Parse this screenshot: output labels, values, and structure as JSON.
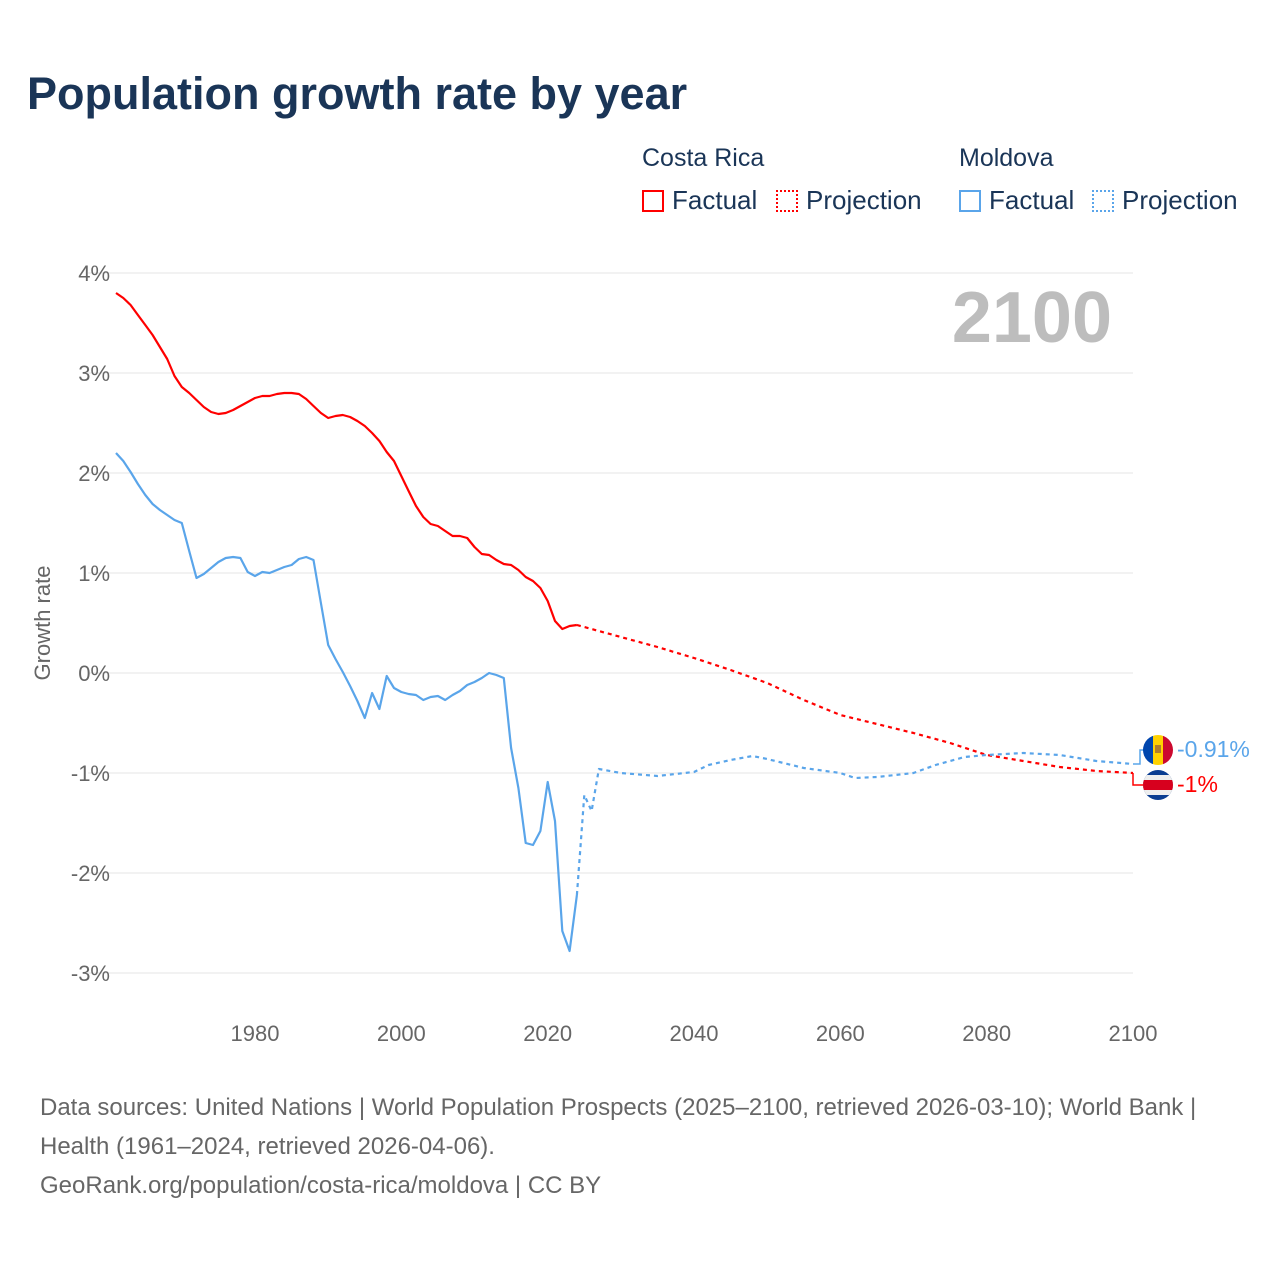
{
  "title": "Population growth rate by year",
  "legend": {
    "groups": [
      {
        "country": "Costa Rica",
        "factual_label": "Factual",
        "projection_label": "Projection",
        "color": "#ff0000"
      },
      {
        "country": "Moldova",
        "factual_label": "Factual",
        "projection_label": "Projection",
        "color": "#5aa5ea"
      }
    ]
  },
  "year_display": "2100",
  "end_labels": {
    "moldova": "-0.91%",
    "costa_rica": "-1%"
  },
  "footer": {
    "sources": "Data sources: United Nations | World Population Prospects (2025–2100, retrieved 2026-03-10); World Bank | Health (1961–2024, retrieved 2026-04-06).",
    "credit": "GeoRank.org/population/costa-rica/moldova | CC BY"
  },
  "chart_data": {
    "type": "line",
    "title": "Population growth rate by year",
    "xlabel": "",
    "ylabel": "Growth rate",
    "xlim": [
      1961,
      2100
    ],
    "ylim": [
      -3,
      4
    ],
    "xticks": [
      "1980",
      "2000",
      "2020",
      "2040",
      "2060",
      "2080",
      "2100"
    ],
    "xtick_values": [
      1980,
      2000,
      2020,
      2040,
      2060,
      2080,
      2100
    ],
    "yticks": [
      "4%",
      "3%",
      "2%",
      "1%",
      "0%",
      "-1%",
      "-2%",
      "-3%"
    ],
    "ytick_values": [
      4,
      3,
      2,
      1,
      0,
      -1,
      -2,
      -3
    ],
    "grid": true,
    "legend_position": "top-right",
    "series": [
      {
        "name": "Costa Rica Factual",
        "color": "#ff0000",
        "style": "solid",
        "x": [
          1961,
          1962,
          1963,
          1964,
          1965,
          1966,
          1967,
          1968,
          1969,
          1970,
          1971,
          1972,
          1973,
          1974,
          1975,
          1976,
          1977,
          1978,
          1979,
          1980,
          1981,
          1982,
          1983,
          1984,
          1985,
          1986,
          1987,
          1988,
          1989,
          1990,
          1991,
          1992,
          1993,
          1994,
          1995,
          1996,
          1997,
          1998,
          1999,
          2000,
          2001,
          2002,
          2003,
          2004,
          2005,
          2006,
          2007,
          2008,
          2009,
          2010,
          2011,
          2012,
          2013,
          2014,
          2015,
          2016,
          2017,
          2018,
          2019,
          2020,
          2021,
          2022,
          2023,
          2024
        ],
        "y": [
          3.8,
          3.75,
          3.68,
          3.58,
          3.48,
          3.38,
          3.26,
          3.14,
          2.97,
          2.86,
          2.8,
          2.73,
          2.66,
          2.61,
          2.59,
          2.6,
          2.63,
          2.67,
          2.71,
          2.75,
          2.77,
          2.77,
          2.79,
          2.8,
          2.8,
          2.79,
          2.74,
          2.67,
          2.6,
          2.55,
          2.57,
          2.58,
          2.56,
          2.52,
          2.47,
          2.4,
          2.32,
          2.21,
          2.12,
          1.97,
          1.82,
          1.67,
          1.56,
          1.49,
          1.47,
          1.42,
          1.37,
          1.37,
          1.35,
          1.26,
          1.19,
          1.18,
          1.13,
          1.09,
          1.08,
          1.03,
          0.96,
          0.92,
          0.85,
          0.72,
          0.52,
          0.44,
          0.47,
          0.48
        ]
      },
      {
        "name": "Costa Rica Projection",
        "color": "#ff0000",
        "style": "dotted",
        "x": [
          2024,
          2030,
          2035,
          2040,
          2045,
          2050,
          2055,
          2060,
          2065,
          2070,
          2075,
          2080,
          2085,
          2090,
          2095,
          2100
        ],
        "y": [
          0.48,
          0.36,
          0.26,
          0.15,
          0.03,
          -0.1,
          -0.27,
          -0.42,
          -0.51,
          -0.6,
          -0.7,
          -0.82,
          -0.88,
          -0.94,
          -0.98,
          -1.0
        ]
      },
      {
        "name": "Moldova Factual",
        "color": "#5aa5ea",
        "style": "solid",
        "x": [
          1961,
          1962,
          1963,
          1964,
          1965,
          1966,
          1967,
          1968,
          1969,
          1970,
          1971,
          1972,
          1973,
          1974,
          1975,
          1976,
          1977,
          1978,
          1979,
          1980,
          1981,
          1982,
          1983,
          1984,
          1985,
          1986,
          1987,
          1988,
          1989,
          1990,
          1991,
          1992,
          1993,
          1994,
          1995,
          1996,
          1997,
          1998,
          1999,
          2000,
          2001,
          2002,
          2003,
          2004,
          2005,
          2006,
          2007,
          2008,
          2009,
          2010,
          2011,
          2012,
          2013,
          2014,
          2015,
          2016,
          2017,
          2018,
          2019,
          2020,
          2021,
          2022,
          2023,
          2024
        ],
        "y": [
          2.2,
          2.12,
          2.01,
          1.89,
          1.78,
          1.69,
          1.63,
          1.58,
          1.53,
          1.5,
          1.22,
          0.95,
          0.99,
          1.05,
          1.11,
          1.15,
          1.16,
          1.15,
          1.01,
          0.97,
          1.01,
          1.0,
          1.03,
          1.06,
          1.08,
          1.14,
          1.16,
          1.13,
          0.7,
          0.28,
          0.14,
          0.01,
          -0.13,
          -0.28,
          -0.45,
          -0.2,
          -0.36,
          -0.03,
          -0.15,
          -0.19,
          -0.21,
          -0.22,
          -0.27,
          -0.24,
          -0.23,
          -0.27,
          -0.22,
          -0.18,
          -0.12,
          -0.09,
          -0.05,
          0.0,
          -0.02,
          -0.05,
          -0.75,
          -1.15,
          -1.7,
          -1.72,
          -1.58,
          -1.09,
          -1.48,
          -2.58,
          -2.78,
          -2.22
        ]
      },
      {
        "name": "Moldova Projection",
        "color": "#5aa5ea",
        "style": "dotted",
        "x": [
          2024,
          2025,
          2026,
          2027,
          2030,
          2035,
          2040,
          2042,
          2045,
          2048,
          2050,
          2055,
          2060,
          2062,
          2065,
          2070,
          2073,
          2077,
          2080,
          2085,
          2090,
          2095,
          2100
        ],
        "y": [
          -2.22,
          -1.22,
          -1.38,
          -0.96,
          -1.0,
          -1.03,
          -0.99,
          -0.92,
          -0.87,
          -0.83,
          -0.86,
          -0.95,
          -1.0,
          -1.05,
          -1.04,
          -1.0,
          -0.92,
          -0.84,
          -0.82,
          -0.8,
          -0.82,
          -0.88,
          -0.91
        ]
      }
    ]
  }
}
